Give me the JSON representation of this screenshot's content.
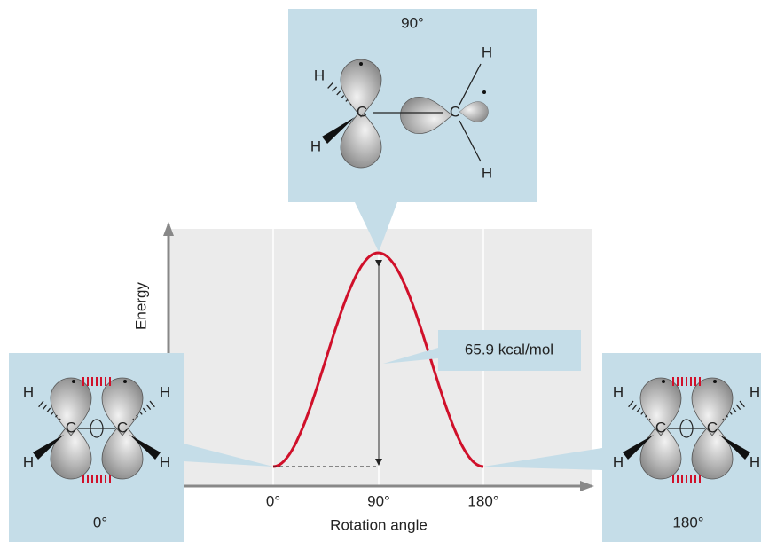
{
  "top_panel": {
    "label": "90°",
    "atoms": [
      "H",
      "H",
      "C",
      "C",
      "H",
      "H"
    ]
  },
  "left_panel": {
    "label": "0°",
    "atoms": [
      "H",
      "H",
      "C",
      "C",
      "H",
      "H"
    ]
  },
  "right_panel": {
    "label": "180°",
    "atoms": [
      "H",
      "H",
      "C",
      "C",
      "H",
      "H"
    ]
  },
  "chart": {
    "y_axis_label": "Energy",
    "x_axis_label": "Rotation angle",
    "x_ticks": [
      "0°",
      "90°",
      "180°"
    ],
    "barrier_label": "65.9 kcal/mol"
  }
}
